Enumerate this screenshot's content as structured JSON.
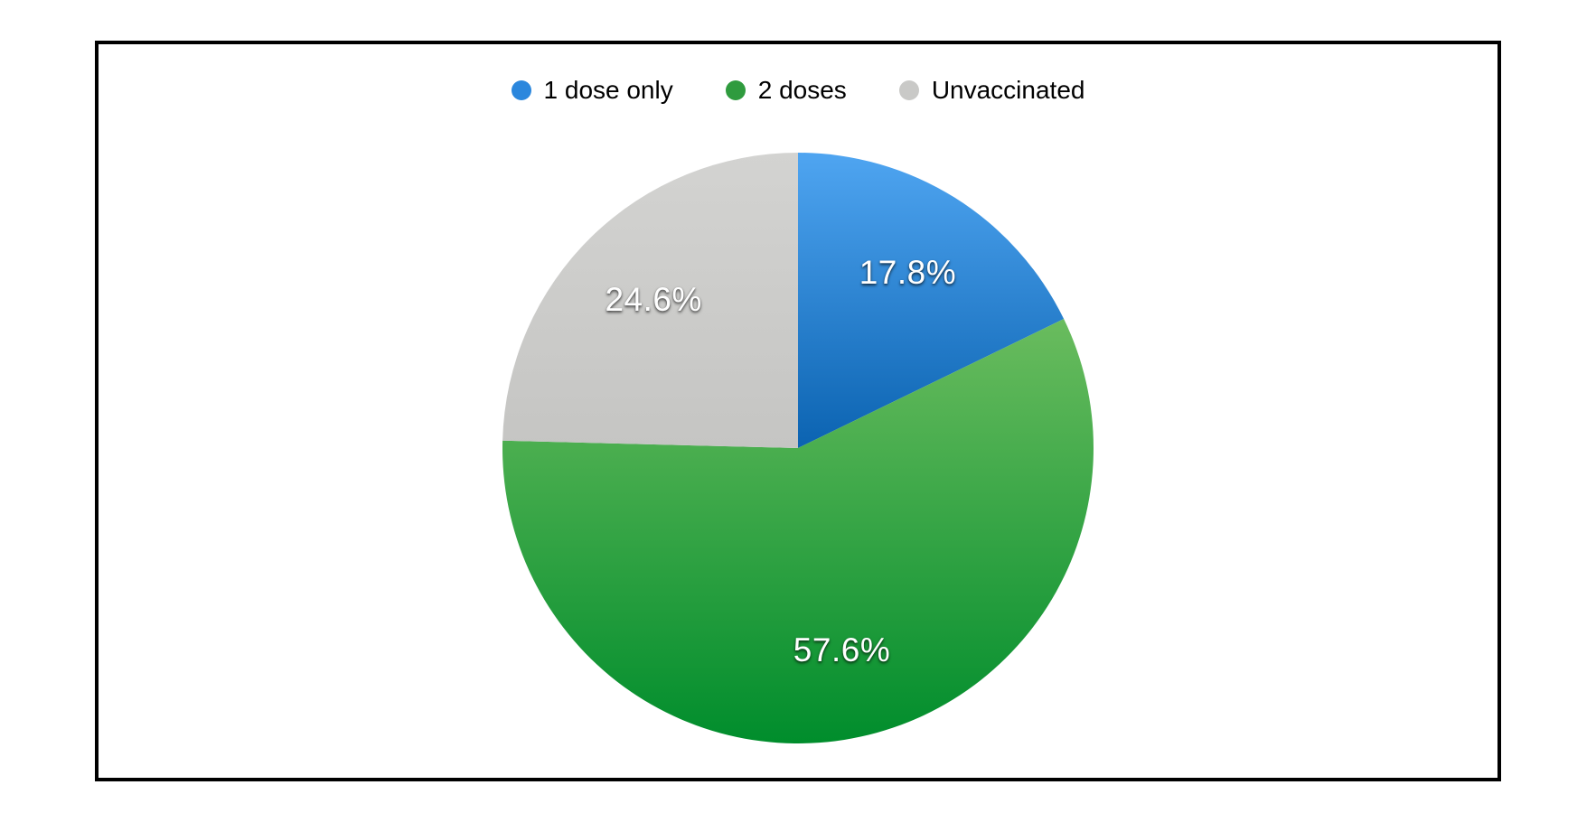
{
  "canvas": {
    "background_color": "#ffffff",
    "frame_border_color": "#000000"
  },
  "chart_data": {
    "type": "pie",
    "title": "",
    "legend_position": "top",
    "start_angle_deg": 0,
    "direction": "clockwise",
    "categories": [
      "1 dose only",
      "2 doses",
      "Unvaccinated"
    ],
    "values": [
      17.8,
      57.6,
      24.6
    ],
    "slices": [
      {
        "name": "1 dose only",
        "value": 17.8,
        "label": "17.8%",
        "color": "#2b87dd",
        "gradient_top": "#4fa5f1",
        "gradient_bottom": "#0b63b1"
      },
      {
        "name": "2 doses",
        "value": 57.6,
        "label": "57.6%",
        "color": "#2f9b3e",
        "gradient_top": "#6abc5e",
        "gradient_bottom": "#008d2c"
      },
      {
        "name": "Unvaccinated",
        "value": 24.6,
        "label": "24.6%",
        "color": "#c9c9c7",
        "gradient_top": "#d3d3d1",
        "gradient_bottom": "#c5c5c3"
      }
    ],
    "label_text_color": "#ffffff"
  }
}
